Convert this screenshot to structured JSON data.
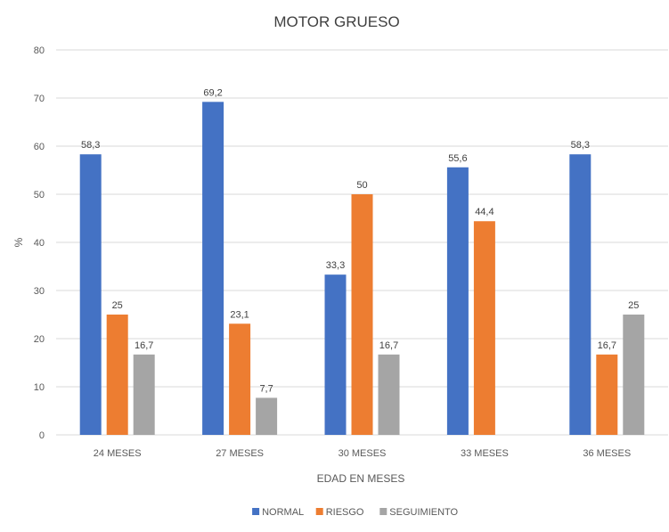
{
  "chart_data": {
    "type": "bar",
    "title": "MOTOR GRUESO",
    "xlabel": "EDAD EN MESES",
    "ylabel": "%",
    "ylim": [
      0,
      80
    ],
    "yticks": [
      0,
      10,
      20,
      30,
      40,
      50,
      60,
      70,
      80
    ],
    "grid": true,
    "legend_position": "bottom",
    "categories": [
      "24 MESES",
      "27 MESES",
      "30 MESES",
      "33 MESES",
      "36 MESES"
    ],
    "series": [
      {
        "name": "NORMAL",
        "color": "#4472c4",
        "values": [
          58.3,
          69.2,
          33.3,
          55.6,
          58.3
        ],
        "labels": [
          "58,3",
          "69,2",
          "33,3",
          "55,6",
          "58,3"
        ]
      },
      {
        "name": "RIESGO",
        "color": "#ed7d31",
        "values": [
          25,
          23.1,
          50,
          44.4,
          16.7
        ],
        "labels": [
          "25",
          "23,1",
          "50",
          "44,4",
          "16,7"
        ]
      },
      {
        "name": "SEGUIMIENTO",
        "color": "#a5a5a5",
        "values": [
          16.7,
          7.7,
          16.7,
          null,
          25
        ],
        "labels": [
          "16,7",
          "7,7",
          "16,7",
          null,
          "25"
        ]
      }
    ]
  }
}
